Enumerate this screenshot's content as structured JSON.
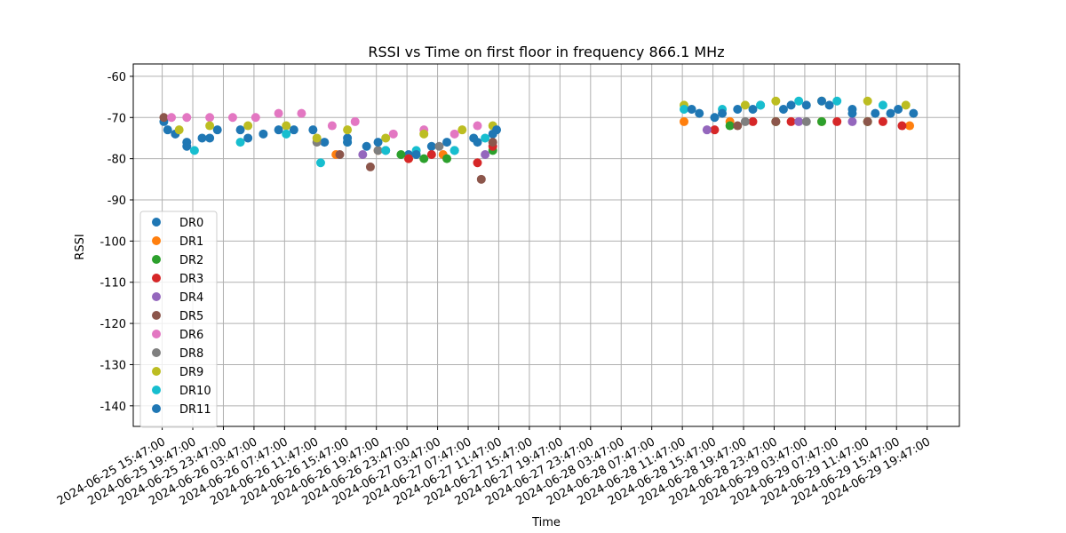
{
  "chart_data": {
    "type": "scatter",
    "title": "RSSI vs Time on first floor in frequency 866.1 MHz",
    "xlabel": "Time",
    "ylabel": "RSSI",
    "xlim": [
      "2024-06-25 12:00",
      "2024-06-30 00:00"
    ],
    "ylim": [
      -145,
      -57
    ],
    "grid": true,
    "legend_position": "lower-left",
    "yticks": [
      -60,
      -70,
      -80,
      -90,
      -100,
      -110,
      -120,
      -130,
      -140
    ],
    "xticks": [
      "2024-06-25 15:47:00",
      "2024-06-25 19:47:00",
      "2024-06-25 23:47:00",
      "2024-06-26 03:47:00",
      "2024-06-26 07:47:00",
      "2024-06-26 11:47:00",
      "2024-06-26 15:47:00",
      "2024-06-26 19:47:00",
      "2024-06-26 23:47:00",
      "2024-06-27 03:47:00",
      "2024-06-27 07:47:00",
      "2024-06-27 11:47:00",
      "2024-06-27 15:47:00",
      "2024-06-27 19:47:00",
      "2024-06-27 23:47:00",
      "2024-06-28 03:47:00",
      "2024-06-28 07:47:00",
      "2024-06-28 11:47:00",
      "2024-06-28 15:47:00",
      "2024-06-28 19:47:00",
      "2024-06-28 23:47:00",
      "2024-06-29 03:47:00",
      "2024-06-29 07:47:00",
      "2024-06-29 11:47:00",
      "2024-06-29 15:47:00",
      "2024-06-29 19:47:00"
    ],
    "series": [
      {
        "name": "DR0",
        "color": "#1f77b4",
        "x": [
          "2024-06-25 16:00",
          "2024-06-25 17:30",
          "2024-06-25 19:00",
          "2024-06-25 21:00",
          "2024-06-25 23:00",
          "2024-06-26 02:00",
          "2024-06-26 05:00",
          "2024-06-26 09:00",
          "2024-06-26 13:00",
          "2024-06-26 16:00",
          "2024-06-26 18:30",
          "2024-06-26 21:00",
          "2024-06-27 00:00",
          "2024-06-27 03:00",
          "2024-06-27 06:00",
          "2024-06-27 09:00",
          "2024-06-27 11:00",
          "2024-06-28 14:00",
          "2024-06-28 16:00",
          "2024-06-28 19:00",
          "2024-06-28 22:00",
          "2024-06-29 01:00",
          "2024-06-29 04:00",
          "2024-06-29 07:00",
          "2024-06-29 10:00",
          "2024-06-29 13:00",
          "2024-06-29 16:00"
        ],
        "y": [
          -71,
          -74,
          -76,
          -75,
          -73,
          -73,
          -74,
          -73,
          -76,
          -75,
          -77,
          -78,
          -79,
          -77,
          -78,
          -76,
          -74,
          -69,
          -70,
          -68,
          -67,
          -68,
          -67,
          -67,
          -68,
          -69,
          -68
        ]
      },
      {
        "name": "DR1",
        "color": "#ff7f0e",
        "x": [
          "2024-06-26 14:30",
          "2024-06-26 20:00",
          "2024-06-27 00:00",
          "2024-06-27 04:30",
          "2024-06-28 12:00",
          "2024-06-28 18:00",
          "2024-06-29 00:00",
          "2024-06-29 06:00",
          "2024-06-29 12:00",
          "2024-06-29 17:30"
        ],
        "y": [
          -79,
          -78,
          -80,
          -79,
          -71,
          -71,
          -71,
          -71,
          -71,
          -72
        ]
      },
      {
        "name": "DR2",
        "color": "#2ca02c",
        "x": [
          "2024-06-26 23:00",
          "2024-06-27 02:00",
          "2024-06-27 05:00",
          "2024-06-27 11:00",
          "2024-06-28 18:00",
          "2024-06-29 00:00",
          "2024-06-29 06:00",
          "2024-06-29 12:00"
        ],
        "y": [
          -79,
          -80,
          -80,
          -78,
          -72,
          -71,
          -71,
          -71
        ]
      },
      {
        "name": "DR3",
        "color": "#d62728",
        "x": [
          "2024-06-27 00:00",
          "2024-06-27 03:00",
          "2024-06-27 09:00",
          "2024-06-27 11:00",
          "2024-06-28 16:00",
          "2024-06-28 21:00",
          "2024-06-29 02:00",
          "2024-06-29 08:00",
          "2024-06-29 14:00",
          "2024-06-29 16:30"
        ],
        "y": [
          -80,
          -79,
          -81,
          -77,
          -73,
          -71,
          -71,
          -71,
          -71,
          -72
        ]
      },
      {
        "name": "DR4",
        "color": "#9467bd",
        "x": [
          "2024-06-26 18:00",
          "2024-06-27 10:00",
          "2024-06-28 15:00",
          "2024-06-29 03:00",
          "2024-06-29 10:00"
        ],
        "y": [
          -79,
          -79,
          -73,
          -71,
          -71
        ]
      },
      {
        "name": "DR5",
        "color": "#8c564b",
        "x": [
          "2024-06-25 16:00",
          "2024-06-26 15:00",
          "2024-06-26 19:00",
          "2024-06-27 09:30",
          "2024-06-27 11:00",
          "2024-06-28 19:00",
          "2024-06-29 00:00",
          "2024-06-29 12:00"
        ],
        "y": [
          -70,
          -79,
          -82,
          -85,
          -76,
          -72,
          -71,
          -71
        ]
      },
      {
        "name": "DR6",
        "color": "#e377c2",
        "x": [
          "2024-06-25 17:00",
          "2024-06-25 19:00",
          "2024-06-25 22:00",
          "2024-06-26 01:00",
          "2024-06-26 04:00",
          "2024-06-26 07:00",
          "2024-06-26 10:00",
          "2024-06-26 14:00",
          "2024-06-26 17:00",
          "2024-06-26 22:00",
          "2024-06-27 02:00",
          "2024-06-27 06:00",
          "2024-06-27 09:00"
        ],
        "y": [
          -70,
          -70,
          -70,
          -70,
          -70,
          -69,
          -69,
          -72,
          -71,
          -74,
          -73,
          -74,
          -72
        ]
      },
      {
        "name": "DR8",
        "color": "#7f7f7f",
        "x": [
          "2024-06-26 12:00",
          "2024-06-26 20:00",
          "2024-06-27 04:00",
          "2024-06-28 20:00",
          "2024-06-29 04:00"
        ],
        "y": [
          -76,
          -78,
          -77,
          -71,
          -71
        ]
      },
      {
        "name": "DR9",
        "color": "#bcbd22",
        "x": [
          "2024-06-25 18:00",
          "2024-06-25 22:00",
          "2024-06-26 03:00",
          "2024-06-26 08:00",
          "2024-06-26 12:00",
          "2024-06-26 16:00",
          "2024-06-26 21:00",
          "2024-06-27 02:00",
          "2024-06-27 07:00",
          "2024-06-27 11:00",
          "2024-06-28 12:00",
          "2024-06-28 20:00",
          "2024-06-29 00:00",
          "2024-06-29 06:00",
          "2024-06-29 12:00",
          "2024-06-29 17:00"
        ],
        "y": [
          -73,
          -72,
          -72,
          -72,
          -75,
          -73,
          -75,
          -74,
          -73,
          -72,
          -67,
          -67,
          -66,
          -66,
          -66,
          -67
        ]
      },
      {
        "name": "DR10",
        "color": "#17becf",
        "x": [
          "2024-06-25 20:00",
          "2024-06-26 02:00",
          "2024-06-26 08:00",
          "2024-06-26 12:30",
          "2024-06-26 16:00",
          "2024-06-26 21:00",
          "2024-06-27 01:00",
          "2024-06-27 06:00",
          "2024-06-27 10:00",
          "2024-06-28 12:00",
          "2024-06-28 17:00",
          "2024-06-28 22:00",
          "2024-06-29 03:00",
          "2024-06-29 08:00",
          "2024-06-29 14:00"
        ],
        "y": [
          -78,
          -76,
          -74,
          -81,
          -76,
          -78,
          -78,
          -78,
          -75,
          -68,
          -68,
          -67,
          -66,
          -66,
          -67
        ]
      },
      {
        "name": "DR11",
        "color": "#1f77b4",
        "x": [
          "2024-06-25 16:30",
          "2024-06-25 19:00",
          "2024-06-25 22:00",
          "2024-06-26 03:00",
          "2024-06-26 07:00",
          "2024-06-26 11:30",
          "2024-06-26 16:00",
          "2024-06-26 20:00",
          "2024-06-27 01:00",
          "2024-06-27 05:00",
          "2024-06-27 08:30",
          "2024-06-27 11:30",
          "2024-06-28 13:00",
          "2024-06-28 17:00",
          "2024-06-28 21:00",
          "2024-06-29 02:00",
          "2024-06-29 06:00",
          "2024-06-29 10:00",
          "2024-06-29 15:00",
          "2024-06-29 18:00"
        ],
        "y": [
          -73,
          -77,
          -75,
          -75,
          -73,
          -73,
          -76,
          -76,
          -79,
          -76,
          -75,
          -73,
          -68,
          -69,
          -68,
          -67,
          -66,
          -69,
          -69,
          -69
        ]
      }
    ]
  }
}
